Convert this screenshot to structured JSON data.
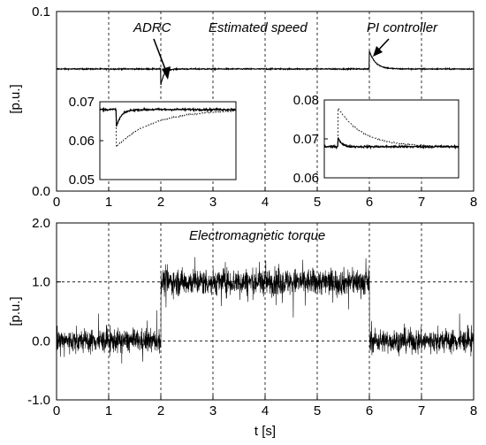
{
  "chart_data": [
    {
      "type": "line",
      "title": "",
      "annotations": [
        "ADRC",
        "Estimated speed",
        "PI controller"
      ],
      "xlabel": "",
      "ylabel": "[p.u.]",
      "xlim": [
        0,
        8
      ],
      "ylim": [
        0,
        0.1
      ],
      "x_ticks": [
        "0",
        "1",
        "2",
        "3",
        "4",
        "5",
        "6",
        "7",
        "8"
      ],
      "y_ticks": [
        "0.0",
        "0.1"
      ],
      "grid": true,
      "series": [
        {
          "baseline": 0.068,
          "events": [
            {
              "t": 2.0,
              "kind": "dip",
              "min": 0.059
            },
            {
              "t": 6.0,
              "kind": "spike",
              "max": 0.078
            }
          ]
        }
      ],
      "insets": [
        {
          "xlim": [
            1.8,
            3.45
          ],
          "ylim": [
            0.05,
            0.07
          ],
          "y_ticks": [
            "0.07",
            "0.06",
            "0.05"
          ],
          "series": [
            {
              "style": "solid",
              "baseline": 0.068,
              "min": 0.0635
            },
            {
              "style": "dashed",
              "baseline": 0.068,
              "min": 0.0585
            }
          ]
        },
        {
          "xlim": [
            5.8,
            7.75
          ],
          "ylim": [
            0.06,
            0.08
          ],
          "y_ticks": [
            "0.08",
            "0.07",
            "0.06"
          ],
          "series": [
            {
              "style": "solid",
              "baseline": 0.068,
              "max": 0.0705
            },
            {
              "style": "dashed",
              "baseline": 0.068,
              "max": 0.078
            }
          ]
        }
      ]
    },
    {
      "type": "line",
      "title": "",
      "annotations": [
        "Electromagnetic torque"
      ],
      "xlabel": "t [s]",
      "ylabel": "[p.u.]",
      "xlim": [
        0,
        8
      ],
      "ylim": [
        -1.0,
        2.0
      ],
      "x_ticks": [
        "0",
        "1",
        "2",
        "3",
        "4",
        "5",
        "6",
        "7",
        "8"
      ],
      "y_ticks": [
        "2.0",
        "1.0",
        "0.0",
        "-1.0"
      ],
      "grid": true,
      "series": [
        {
          "segments": [
            {
              "t0": 0,
              "t1": 2,
              "mean": 0.0,
              "noise_amplitude": 0.35
            },
            {
              "t0": 2,
              "t1": 6,
              "mean": 1.0,
              "noise_amplitude": 0.4
            },
            {
              "t0": 6,
              "t1": 8,
              "mean": 0.0,
              "noise_amplitude": 0.35
            }
          ]
        }
      ]
    }
  ]
}
